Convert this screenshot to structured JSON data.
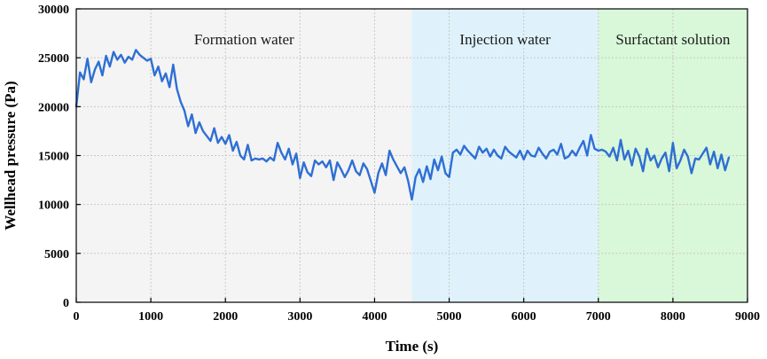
{
  "chart_data": {
    "type": "line",
    "title": "",
    "xlabel": "Time (s)",
    "ylabel": "Wellhead pressure (Pa)",
    "xlim": [
      0,
      9000
    ],
    "ylim": [
      0,
      30000
    ],
    "xticks": [
      0,
      1000,
      2000,
      3000,
      4000,
      5000,
      6000,
      7000,
      8000,
      9000
    ],
    "yticks": [
      0,
      5000,
      10000,
      15000,
      20000,
      25000,
      30000
    ],
    "grid": true,
    "regions": [
      {
        "label": "Formation water",
        "x_start": 0,
        "x_end": 4500,
        "color": "#f4f4f4"
      },
      {
        "label": "Injection water",
        "x_start": 4500,
        "x_end": 7000,
        "color": "#dff2fb"
      },
      {
        "label": "Surfactant solution",
        "x_start": 7000,
        "x_end": 9000,
        "color": "#d9f7d9"
      }
    ],
    "series": [
      {
        "name": "Wellhead pressure",
        "color": "#2e6fd3",
        "x": [
          0,
          50,
          100,
          150,
          200,
          250,
          300,
          350,
          400,
          450,
          500,
          550,
          600,
          650,
          700,
          750,
          800,
          850,
          900,
          950,
          1000,
          1050,
          1100,
          1150,
          1200,
          1250,
          1300,
          1350,
          1400,
          1450,
          1500,
          1550,
          1600,
          1650,
          1700,
          1750,
          1800,
          1850,
          1900,
          1950,
          2000,
          2050,
          2100,
          2150,
          2200,
          2250,
          2300,
          2350,
          2400,
          2450,
          2500,
          2550,
          2600,
          2650,
          2700,
          2750,
          2800,
          2850,
          2900,
          2950,
          3000,
          3050,
          3100,
          3150,
          3200,
          3250,
          3300,
          3350,
          3400,
          3450,
          3500,
          3550,
          3600,
          3650,
          3700,
          3750,
          3800,
          3850,
          3900,
          3950,
          4000,
          4050,
          4100,
          4150,
          4200,
          4250,
          4300,
          4350,
          4400,
          4450,
          4500,
          4550,
          4600,
          4650,
          4700,
          4750,
          4800,
          4850,
          4900,
          4950,
          5000,
          5050,
          5100,
          5150,
          5200,
          5250,
          5300,
          5350,
          5400,
          5450,
          5500,
          5550,
          5600,
          5650,
          5700,
          5750,
          5800,
          5850,
          5900,
          5950,
          6000,
          6050,
          6100,
          6150,
          6200,
          6250,
          6300,
          6350,
          6400,
          6450,
          6500,
          6550,
          6600,
          6650,
          6700,
          6750,
          6800,
          6850,
          6900,
          6950,
          7000,
          7050,
          7100,
          7150,
          7200,
          7250,
          7300,
          7350,
          7400,
          7450,
          7500,
          7550,
          7600,
          7650,
          7700,
          7750,
          7800,
          7850,
          7900,
          7950,
          8000,
          8050,
          8100,
          8150,
          8200,
          8250,
          8300,
          8350,
          8400,
          8450,
          8500,
          8550,
          8600,
          8650,
          8700,
          8750
        ],
        "values": [
          20000,
          23500,
          22800,
          24900,
          22500,
          23800,
          24600,
          23200,
          25200,
          24100,
          25600,
          24800,
          25300,
          24500,
          25100,
          24800,
          25800,
          25300,
          25000,
          24700,
          24900,
          23200,
          24100,
          22600,
          23400,
          22000,
          24300,
          21800,
          20500,
          19600,
          18000,
          19200,
          17300,
          18400,
          17500,
          17000,
          16500,
          17800,
          16300,
          16900,
          16200,
          17100,
          15500,
          16400,
          15000,
          14600,
          16100,
          14500,
          14700,
          14600,
          14700,
          14400,
          14800,
          14500,
          16300,
          15300,
          14600,
          15700,
          14100,
          15200,
          12700,
          14300,
          13300,
          12900,
          14500,
          14100,
          14400,
          13800,
          14500,
          12500,
          14300,
          13600,
          12800,
          13500,
          14500,
          13400,
          13000,
          14200,
          13600,
          12400,
          11200,
          13200,
          14200,
          13000,
          15500,
          14600,
          13900,
          13200,
          13800,
          12400,
          10500,
          12800,
          13600,
          12300,
          13900,
          12600,
          14600,
          13500,
          14900,
          13200,
          12800,
          15300,
          15600,
          15100,
          16000,
          15500,
          15100,
          14700,
          15900,
          15300,
          15700,
          14900,
          15600,
          15000,
          14700,
          15900,
          15400,
          15100,
          14800,
          15500,
          14600,
          15500,
          15000,
          14900,
          15800,
          15200,
          14700,
          15400,
          15600,
          15100,
          16200,
          14700,
          14900,
          15500,
          15000,
          15800,
          16500,
          15000,
          17100,
          15700,
          15500,
          15600,
          15400,
          14900,
          15800,
          14500,
          16600,
          14600,
          15500,
          14000,
          15700,
          14900,
          13400,
          15700,
          14500,
          15000,
          13800,
          14700,
          15300,
          13400,
          16300,
          13700,
          14500,
          15600,
          14900,
          13200,
          14700,
          14600,
          15200,
          15800,
          14100,
          15400,
          13700,
          15100,
          13500,
          14800
        ]
      }
    ]
  }
}
